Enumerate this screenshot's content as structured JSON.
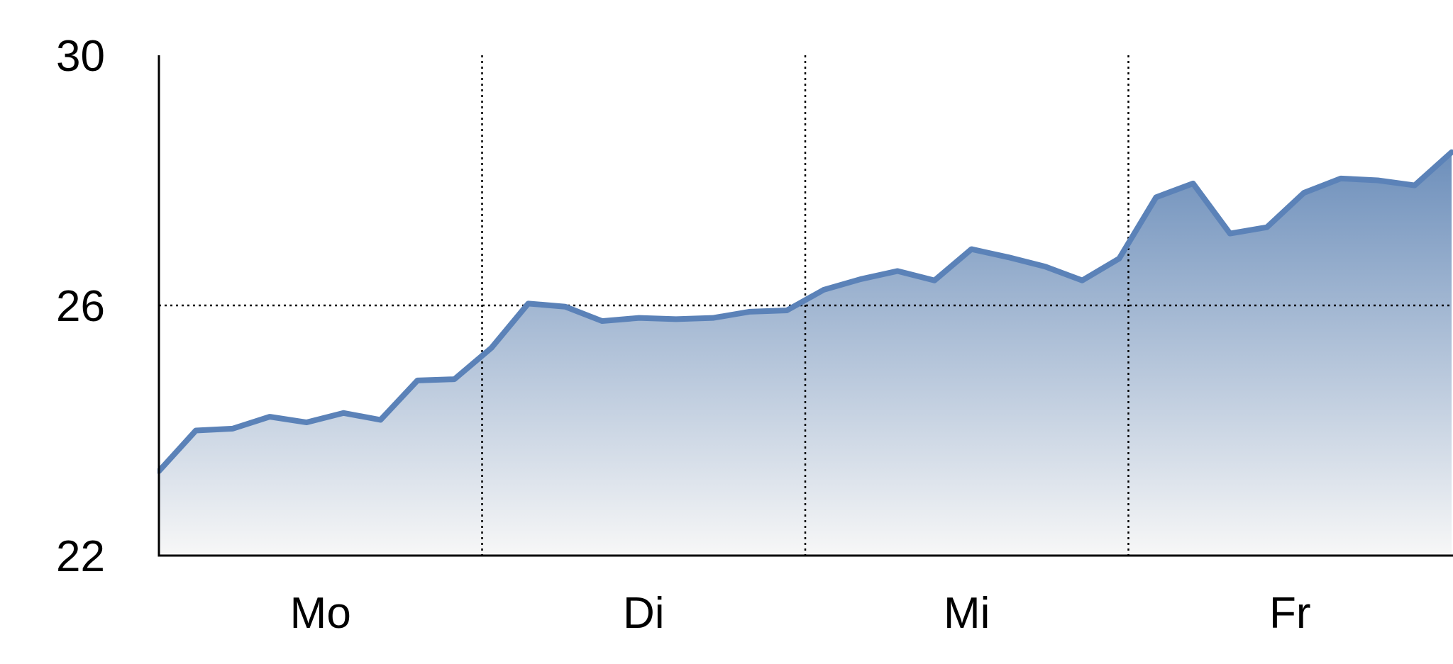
{
  "chart_data": {
    "type": "area",
    "title": "",
    "xlabel": "",
    "ylabel": "",
    "categories": [
      "Mo",
      "Di",
      "Mi",
      "Fr"
    ],
    "y_ticks": [
      {
        "value": 22,
        "label": "22"
      },
      {
        "value": 26,
        "label": "26"
      },
      {
        "value": 30,
        "label": "30"
      }
    ],
    "ylim": [
      22,
      30
    ],
    "x_range": [
      0,
      35
    ],
    "grid": {
      "horizontal": [
        26
      ],
      "vertical_category_separators": true,
      "style": "dotted"
    },
    "legend": "none",
    "series": [
      {
        "color": "#5b82b8",
        "fill_top_color": "#6d8fbb",
        "fill_bottom_color": "#f7f7f7",
        "x": [
          0,
          1,
          2,
          3,
          4,
          5,
          6,
          7,
          8,
          9,
          10,
          11,
          12,
          13,
          14,
          15,
          16,
          17,
          18,
          19,
          20,
          21,
          22,
          23,
          24,
          25,
          26,
          27,
          28,
          29,
          30,
          31,
          32,
          33,
          34,
          35
        ],
        "values": [
          23.35,
          24.0,
          24.03,
          24.22,
          24.13,
          24.28,
          24.17,
          24.8,
          24.82,
          25.32,
          26.03,
          25.98,
          25.75,
          25.8,
          25.78,
          25.8,
          25.9,
          25.92,
          26.25,
          26.42,
          26.55,
          26.4,
          26.9,
          26.77,
          26.62,
          26.4,
          26.75,
          27.73,
          27.95,
          27.15,
          27.25,
          27.8,
          28.03,
          28.0,
          27.92,
          28.45
        ]
      }
    ]
  }
}
